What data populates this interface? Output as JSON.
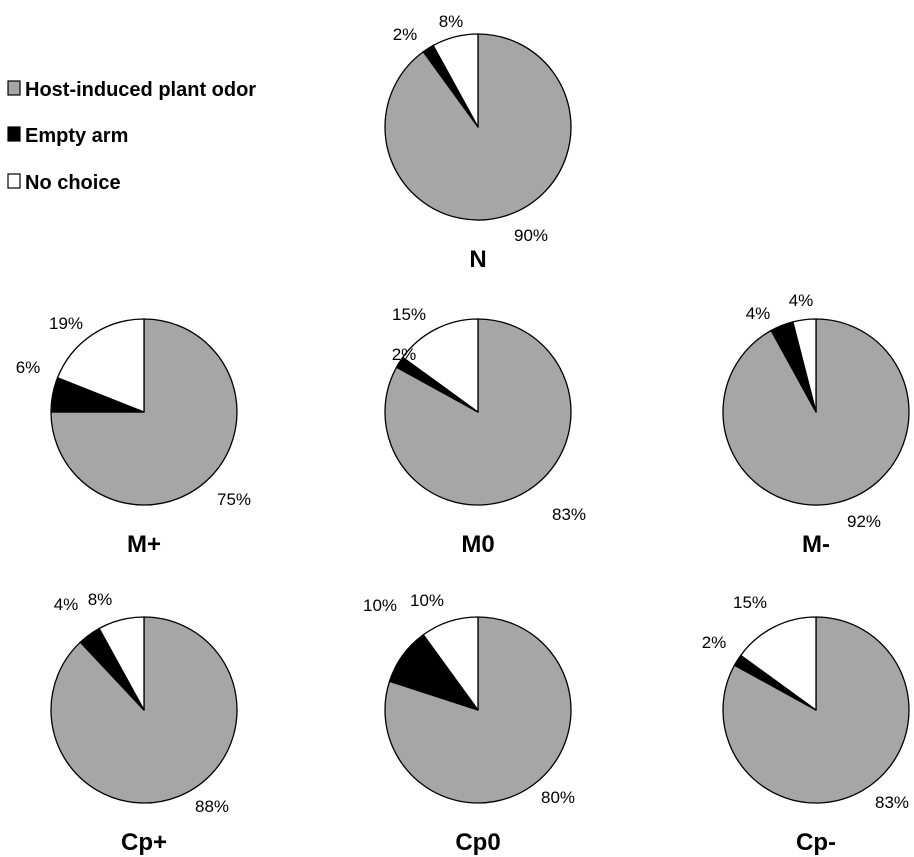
{
  "chart_data": {
    "type": "pie",
    "legend": {
      "placement": "top-left",
      "entries": [
        {
          "label": "Host-induced plant odor",
          "color": "#a6a6a6"
        },
        {
          "label": "Empty arm",
          "color": "#000000"
        },
        {
          "label": "No choice",
          "color": "#ffffff"
        }
      ]
    },
    "charts": [
      {
        "title": "N",
        "values": [
          90,
          2,
          8
        ],
        "labels": [
          "90%",
          "2%",
          "8%"
        ]
      },
      {
        "title": "M+",
        "values": [
          75,
          6,
          19
        ],
        "labels": [
          "75%",
          "6%",
          "19%"
        ]
      },
      {
        "title": "M0",
        "values": [
          83,
          2,
          15
        ],
        "labels": [
          "83%",
          "2%",
          "15%"
        ]
      },
      {
        "title": "M-",
        "values": [
          92,
          4,
          4
        ],
        "labels": [
          "92%",
          "4%",
          "4%"
        ]
      },
      {
        "title": "Cp+",
        "values": [
          88,
          4,
          8
        ],
        "labels": [
          "88%",
          "4%",
          "8%"
        ]
      },
      {
        "title": "Cp0",
        "values": [
          80,
          10,
          10
        ],
        "labels": [
          "80%",
          "10%",
          "10%"
        ]
      },
      {
        "title": "Cp-",
        "values": [
          83,
          2,
          15
        ],
        "labels": [
          "83%",
          "2%",
          "15%"
        ]
      }
    ]
  }
}
